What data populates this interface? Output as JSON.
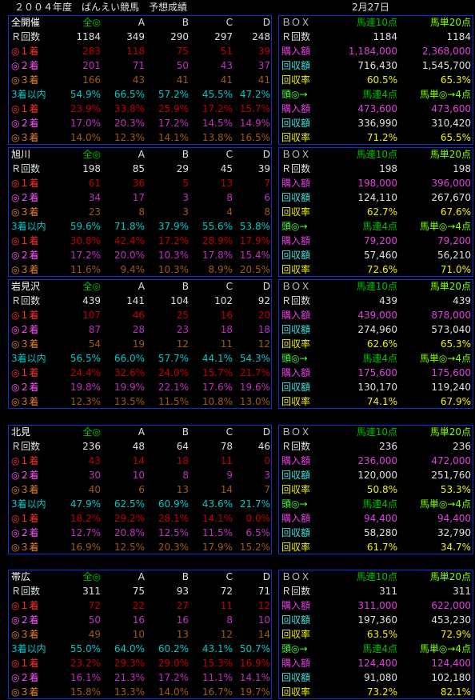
{
  "header": {
    "title": "２００４年度　ばんえい競馬　予想成績",
    "date": "2月27日"
  },
  "sections": [
    {
      "left": {
        "rows": [
          [
            "全開催",
            "全◎",
            "A",
            "B",
            "C",
            "D"
          ],
          [
            "Ｒ回数",
            "1184",
            "349",
            "290",
            "297",
            "248"
          ],
          [
            "◎１着",
            "283",
            "118",
            "75",
            "51",
            "39"
          ],
          [
            "◎２着",
            "201",
            "71",
            "50",
            "43",
            "37"
          ],
          [
            "◎３着",
            "166",
            "43",
            "41",
            "41",
            "41"
          ],
          [
            "3着以内",
            "54.9%",
            "66.5%",
            "57.2%",
            "45.5%",
            "47.2%"
          ],
          [
            "◎１着",
            "23.9%",
            "33.8%",
            "25.9%",
            "17.2%",
            "15.7%"
          ],
          [
            "◎２着",
            "17.0%",
            "20.3%",
            "17.2%",
            "14.5%",
            "14.9%"
          ],
          [
            "◎３着",
            "14.0%",
            "12.3%",
            "14.1%",
            "13.8%",
            "16.5%"
          ]
        ]
      },
      "right": {
        "rows": [
          [
            "ＢＯＸ",
            "馬連10点",
            "馬単20点"
          ],
          [
            "Ｒ回数",
            "1184",
            "1184"
          ],
          [
            "購入額",
            "1,184,000",
            "2,368,000"
          ],
          [
            "回収額",
            "716,430",
            "1,545,700"
          ],
          [
            "回収率",
            "60.5%",
            "65.3%"
          ],
          [
            "頭◎→",
            "馬連4点",
            "馬単◎→4点"
          ],
          [
            "購入額",
            "473,600",
            "473,600"
          ],
          [
            "回収額",
            "336,990",
            "310,420"
          ],
          [
            "回収率",
            "71.2%",
            "65.5%"
          ]
        ]
      }
    },
    {
      "left": {
        "rows": [
          [
            "旭川",
            "全◎",
            "A",
            "B",
            "C",
            "D"
          ],
          [
            "Ｒ回数",
            "198",
            "85",
            "29",
            "45",
            "39"
          ],
          [
            "◎１着",
            "61",
            "36",
            "5",
            "13",
            "7"
          ],
          [
            "◎２着",
            "34",
            "17",
            "3",
            "8",
            "6"
          ],
          [
            "◎３着",
            "23",
            "8",
            "3",
            "4",
            "8"
          ],
          [
            "3着以内",
            "59.6%",
            "71.8%",
            "37.9%",
            "55.6%",
            "53.8%"
          ],
          [
            "◎１着",
            "30.8%",
            "42.4%",
            "17.2%",
            "28.9%",
            "17.9%"
          ],
          [
            "◎２着",
            "17.2%",
            "20.0%",
            "10.3%",
            "17.8%",
            "15.4%"
          ],
          [
            "◎３着",
            "11.6%",
            "9.4%",
            "10.3%",
            "8.9%",
            "20.5%"
          ]
        ]
      },
      "right": {
        "rows": [
          [
            "ＢＯＸ",
            "馬連10点",
            "馬単20点"
          ],
          [
            "Ｒ回数",
            "198",
            "198"
          ],
          [
            "購入額",
            "198,000",
            "396,000"
          ],
          [
            "回収額",
            "124,110",
            "267,670"
          ],
          [
            "回収率",
            "62.7%",
            "67.6%"
          ],
          [
            "頭◎→",
            "馬連4点",
            "馬単◎→4点"
          ],
          [
            "購入額",
            "79,200",
            "79,200"
          ],
          [
            "回収額",
            "57,460",
            "56,210"
          ],
          [
            "回収率",
            "72.6%",
            "71.0%"
          ]
        ]
      }
    },
    {
      "left": {
        "rows": [
          [
            "岩見沢",
            "全◎",
            "A",
            "B",
            "C",
            "D"
          ],
          [
            "Ｒ回数",
            "439",
            "141",
            "104",
            "102",
            "92"
          ],
          [
            "◎１着",
            "107",
            "46",
            "25",
            "16",
            "20"
          ],
          [
            "◎２着",
            "87",
            "28",
            "23",
            "18",
            "18"
          ],
          [
            "◎３着",
            "54",
            "19",
            "12",
            "11",
            "12"
          ],
          [
            "3着以内",
            "56.5%",
            "66.0%",
            "57.7%",
            "44.1%",
            "54.3%"
          ],
          [
            "◎１着",
            "24.4%",
            "32.6%",
            "24.0%",
            "15.7%",
            "21.7%"
          ],
          [
            "◎２着",
            "19.8%",
            "19.9%",
            "22.1%",
            "17.6%",
            "19.6%"
          ],
          [
            "◎３着",
            "12.3%",
            "13.5%",
            "11.5%",
            "10.8%",
            "13.0%"
          ]
        ]
      },
      "right": {
        "rows": [
          [
            "ＢＯＸ",
            "馬連10点",
            "馬単20点"
          ],
          [
            "Ｒ回数",
            "439",
            "439"
          ],
          [
            "購入額",
            "439,000",
            "878,000"
          ],
          [
            "回収額",
            "274,960",
            "573,040"
          ],
          [
            "回収率",
            "62.6%",
            "65.3%"
          ],
          [
            "頭◎→",
            "馬連4点",
            "馬単◎→4点"
          ],
          [
            "購入額",
            "175,600",
            "175,600"
          ],
          [
            "回収額",
            "130,170",
            "119,240"
          ],
          [
            "回収率",
            "74.1%",
            "67.9%"
          ]
        ]
      }
    },
    {
      "left": {
        "rows": [
          [
            "北見",
            "全◎",
            "A",
            "B",
            "C",
            "D"
          ],
          [
            "Ｒ回数",
            "236",
            "48",
            "64",
            "78",
            "46"
          ],
          [
            "◎１着",
            "43",
            "14",
            "18",
            "11",
            "0"
          ],
          [
            "◎２着",
            "30",
            "10",
            "8",
            "9",
            "3"
          ],
          [
            "◎３着",
            "40",
            "6",
            "13",
            "14",
            "7"
          ],
          [
            "3着以内",
            "47.9%",
            "62.5%",
            "60.9%",
            "43.6%",
            "21.7%"
          ],
          [
            "◎１着",
            "18.2%",
            "29.2%",
            "28.1%",
            "14.1%",
            "0.0%"
          ],
          [
            "◎２着",
            "12.7%",
            "20.8%",
            "12.5%",
            "11.5%",
            "6.5%"
          ],
          [
            "◎３着",
            "16.9%",
            "12.5%",
            "20.3%",
            "17.9%",
            "15.2%"
          ]
        ]
      },
      "right": {
        "rows": [
          [
            "ＢＯＸ",
            "馬連10点",
            "馬単20点"
          ],
          [
            "Ｒ回数",
            "236",
            "236"
          ],
          [
            "購入額",
            "236,000",
            "472,000"
          ],
          [
            "回収額",
            "120,000",
            "251,760"
          ],
          [
            "回収率",
            "50.8%",
            "53.3%"
          ],
          [
            "頭◎→",
            "馬連4点",
            "馬単◎→4点"
          ],
          [
            "購入額",
            "94,400",
            "94,400"
          ],
          [
            "回収額",
            "58,280",
            "32,790"
          ],
          [
            "回収率",
            "61.7%",
            "34.7%"
          ]
        ]
      }
    },
    {
      "left": {
        "rows": [
          [
            "帯広",
            "全◎",
            "A",
            "B",
            "C",
            "D"
          ],
          [
            "Ｒ回数",
            "311",
            "75",
            "93",
            "72",
            "71"
          ],
          [
            "◎１着",
            "72",
            "22",
            "27",
            "11",
            "12"
          ],
          [
            "◎２着",
            "50",
            "16",
            "16",
            "8",
            "10"
          ],
          [
            "◎３着",
            "49",
            "10",
            "13",
            "12",
            "14"
          ],
          [
            "3着以内",
            "55.0%",
            "64.0%",
            "60.2%",
            "43.1%",
            "50.7%"
          ],
          [
            "◎１着",
            "23.2%",
            "29.3%",
            "29.0%",
            "15.3%",
            "16.9%"
          ],
          [
            "◎２着",
            "16.1%",
            "21.3%",
            "17.2%",
            "11.1%",
            "14.1%"
          ],
          [
            "◎３着",
            "15.8%",
            "13.3%",
            "14.0%",
            "16.7%",
            "19.7%"
          ]
        ]
      },
      "right": {
        "rows": [
          [
            "ＢＯＸ",
            "馬連10点",
            "馬単20点"
          ],
          [
            "Ｒ回数",
            "311",
            "311"
          ],
          [
            "購入額",
            "311,000",
            "622,000"
          ],
          [
            "回収額",
            "197,360",
            "453,230"
          ],
          [
            "回収率",
            "63.5%",
            "72.9%"
          ],
          [
            "頭◎→",
            "馬連4点",
            "馬単◎→4点"
          ],
          [
            "購入額",
            "124,400",
            "124,400"
          ],
          [
            "回収額",
            "91,080",
            "102,180"
          ],
          [
            "回収率",
            "73.2%",
            "82.1%"
          ]
        ]
      }
    }
  ]
}
